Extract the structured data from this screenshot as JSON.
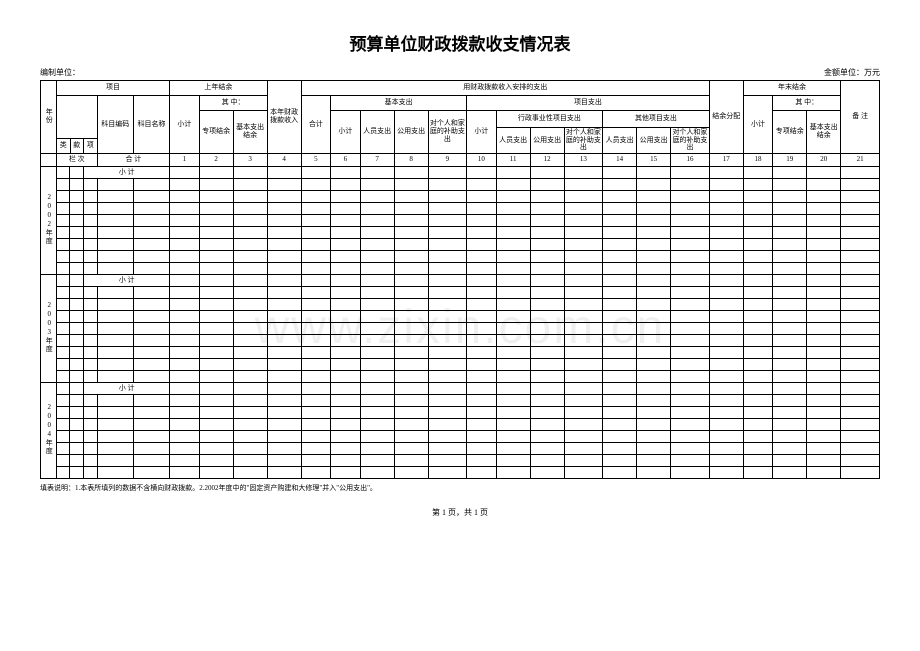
{
  "title": "预算单位财政拨款收支情况表",
  "meta": {
    "left_label": "编制单位：",
    "right_label": "金额单位：万元"
  },
  "col_group_widths": {
    "year": 14,
    "lei": 12,
    "kuan": 12,
    "xiang": 12,
    "subject_code": 32,
    "subject_name": 32,
    "std": 30
  },
  "header": {
    "project": "项目",
    "prev_balance": "上年结余",
    "qizhong": "其 中：",
    "year_col": "年份",
    "subject_code": "科目编码",
    "subject_name": "科目名称",
    "xiaoji": "小计",
    "special_balance": "专项结余",
    "basic_exp_balance": "基本支出结余",
    "this_year_income": "本年财政拨款收入",
    "arranged_exp": "用财政拨款收入安排的支出",
    "heji": "合计",
    "basic_exp": "基本支出",
    "project_exp": "项目支出",
    "staff_exp": "人员支出",
    "public_exp": "公用支出",
    "family_sub": "对个人和家庭的补助支出",
    "admin_proj": "行政事业性项目支出",
    "other_proj": "其他项目支出",
    "balance_dist": "结余分配",
    "year_end_balance": "年末结余",
    "remark": "备 注",
    "lei": "类",
    "kuan": "款",
    "xiang": "项",
    "lanci": "栏 次",
    "xj_label": "小 计",
    "hj_label": "合 计"
  },
  "col_numbers": [
    "1",
    "2",
    "3",
    "4",
    "5",
    "6",
    "7",
    "8",
    "9",
    "10",
    "11",
    "12",
    "13",
    "14",
    "15",
    "16",
    "17",
    "18",
    "19",
    "20",
    "21"
  ],
  "year_groups": [
    {
      "label": "2002年度",
      "rows": 9
    },
    {
      "label": "2003年度",
      "rows": 9
    },
    {
      "label": "2004年度",
      "rows": 8
    }
  ],
  "footnote": "填表说明：1.本表所填列的数据不含横向财政拨款。2.2002年度中的\"固定资产购建和大修理\"并入\"公用支出\"。",
  "pager": "第 1 页，共 1 页",
  "watermark": "www.zixin.com.cn"
}
